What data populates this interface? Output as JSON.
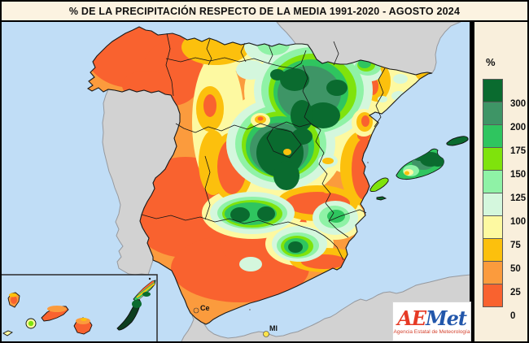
{
  "title": "% DE LA PRECIPITACIÓN RESPECTO DE LA MEDIA 1991-2020 - AGOSTO 2024",
  "legend": {
    "unit": "%",
    "items": [
      {
        "label": "300",
        "color": "#0a6b2f"
      },
      {
        "label": "200",
        "color": "#3e9566"
      },
      {
        "label": "175",
        "color": "#2fc55f"
      },
      {
        "label": "150",
        "color": "#7fe30c"
      },
      {
        "label": "125",
        "color": "#8ff2a6"
      },
      {
        "label": "100",
        "color": "#d4f7dd"
      },
      {
        "label": "75",
        "color": "#fdf9a1"
      },
      {
        "label": "50",
        "color": "#fcc00d"
      },
      {
        "label": "25",
        "color": "#fb9b3d"
      },
      {
        "label": "0",
        "color": "#f9622f"
      }
    ]
  },
  "map": {
    "ceuta_label": "Ce",
    "melilla_label": "Ml"
  },
  "logo": {
    "letters": [
      {
        "t": "A",
        "color": "#e63a25"
      },
      {
        "t": "E",
        "color": "#e63a25"
      },
      {
        "t": "M",
        "color": "#2257ab"
      },
      {
        "t": "e",
        "color": "#2257ab"
      },
      {
        "t": "t",
        "color": "#2257ab"
      }
    ],
    "tagline": "Agencia Estatal de Meteorología"
  },
  "colors": {
    "sea": "#c0ddf6",
    "neighbor_land": "#d2d2d2",
    "panel_bg": "#f9efdc",
    "title_bg": "#fcf3e1"
  }
}
